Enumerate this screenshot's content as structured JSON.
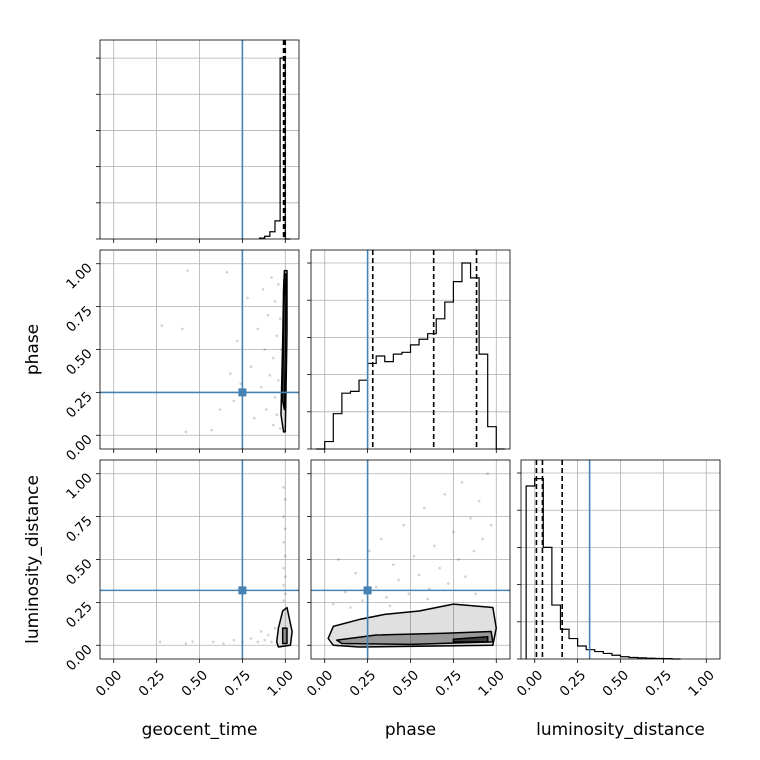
{
  "colors": {
    "truth": "#4682b4",
    "hist": "#000000",
    "quantile": "#000000",
    "grid": "#b0b0b0",
    "contour_fill": "#000000",
    "scatter": "#000000"
  },
  "chart_data": {
    "type": "corner",
    "parameters": [
      "geocent_time",
      "phase",
      "luminosity_distance"
    ],
    "axis_labels": {
      "x": [
        "geocent_time",
        "phase",
        "luminosity_distance"
      ],
      "y": [
        "",
        "phase",
        "luminosity_distance"
      ]
    },
    "range": [
      -0.08,
      1.08
    ],
    "ticks": [
      0.0,
      0.25,
      0.5,
      0.75,
      1.0
    ],
    "tick_labels": [
      "0.00",
      "0.25",
      "0.50",
      "0.75",
      "1.00"
    ],
    "grid": true,
    "truths": [
      0.75,
      0.25,
      0.32
    ],
    "quantiles": [
      [
        0.99,
        0.995,
        1.0
      ],
      [
        0.28,
        0.635,
        0.885
      ],
      [
        0.01,
        0.045,
        0.16
      ]
    ],
    "histograms": [
      {
        "parameter": "geocent_time",
        "bin_edges": [
          0.85,
          0.88,
          0.91,
          0.94,
          0.97,
          1.0,
          1.03
        ],
        "counts": [
          0.005,
          0.015,
          0.04,
          0.1,
          1.0,
          0.0
        ],
        "ymax": 1.1
      },
      {
        "parameter": "phase",
        "bin_edges": [
          -0.05,
          0.0,
          0.05,
          0.1,
          0.15,
          0.2,
          0.25,
          0.3,
          0.35,
          0.4,
          0.45,
          0.5,
          0.55,
          0.6,
          0.65,
          0.7,
          0.75,
          0.8,
          0.85,
          0.9,
          0.95,
          1.0,
          1.05
        ],
        "counts": [
          0.0,
          0.04,
          0.19,
          0.3,
          0.31,
          0.37,
          0.46,
          0.5,
          0.47,
          0.51,
          0.52,
          0.56,
          0.59,
          0.62,
          0.7,
          0.79,
          0.9,
          1.0,
          0.92,
          0.51,
          0.12,
          0.0
        ],
        "ymax": 1.07
      },
      {
        "parameter": "luminosity_distance",
        "bin_edges": [
          -0.05,
          0.0,
          0.05,
          0.1,
          0.15,
          0.2,
          0.25,
          0.3,
          0.35,
          0.4,
          0.45,
          0.5,
          0.55,
          0.6,
          0.65,
          0.7,
          0.75,
          0.8,
          0.85
        ],
        "counts": [
          0.93,
          0.97,
          0.6,
          0.29,
          0.16,
          0.11,
          0.07,
          0.05,
          0.04,
          0.03,
          0.02,
          0.012,
          0.008,
          0.006,
          0.004,
          0.003,
          0.002,
          0.0
        ],
        "ymax": 1.07
      }
    ],
    "pairs": [
      {
        "x": "geocent_time",
        "y": "phase",
        "contours": [
          [
            [
              0.975,
              0.12
            ],
            [
              0.985,
              0.55
            ],
            [
              0.99,
              0.85
            ],
            [
              0.995,
              0.96
            ],
            [
              1.01,
              0.96
            ],
            [
              1.01,
              0.6
            ],
            [
              1.0,
              0.02
            ],
            [
              0.99,
              0.02
            ]
          ],
          [
            [
              0.985,
              0.2
            ],
            [
              0.99,
              0.6
            ],
            [
              0.995,
              0.88
            ],
            [
              1.005,
              0.88
            ],
            [
              1.0,
              0.5
            ],
            [
              0.995,
              0.15
            ]
          ],
          [
            [
              0.99,
              0.82
            ],
            [
              0.995,
              0.94
            ],
            [
              1.005,
              0.94
            ],
            [
              1.0,
              0.82
            ]
          ]
        ],
        "scatter": [
          [
            0.28,
            0.64
          ],
          [
            0.4,
            0.62
          ],
          [
            0.43,
            0.96
          ],
          [
            0.42,
            0.02
          ],
          [
            0.57,
            0.03
          ],
          [
            0.62,
            0.15
          ],
          [
            0.66,
            0.95
          ],
          [
            0.68,
            0.36
          ],
          [
            0.7,
            0.2
          ],
          [
            0.72,
            0.55
          ],
          [
            0.74,
            0.3
          ],
          [
            0.78,
            0.8
          ],
          [
            0.8,
            0.4
          ],
          [
            0.82,
            0.1
          ],
          [
            0.84,
            0.62
          ],
          [
            0.86,
            0.28
          ],
          [
            0.87,
            0.85
          ],
          [
            0.88,
            0.5
          ],
          [
            0.89,
            0.15
          ],
          [
            0.9,
            0.7
          ],
          [
            0.91,
            0.35
          ],
          [
            0.92,
            0.92
          ],
          [
            0.93,
            0.06
          ],
          [
            0.93,
            0.45
          ],
          [
            0.94,
            0.22
          ],
          [
            0.94,
            0.78
          ],
          [
            0.95,
            0.58
          ],
          [
            0.95,
            0.12
          ],
          [
            0.96,
            0.88
          ],
          [
            0.96,
            0.32
          ],
          [
            0.97,
            0.68
          ],
          [
            0.97,
            0.04
          ],
          [
            0.98,
            0.5
          ]
        ]
      },
      {
        "x": "geocent_time",
        "y": "luminosity_distance",
        "contours": [
          [
            [
              0.95,
              0.02
            ],
            [
              0.96,
              0.1
            ],
            [
              0.985,
              0.2
            ],
            [
              1.01,
              0.22
            ],
            [
              1.04,
              0.08
            ],
            [
              1.03,
              0.0
            ],
            [
              0.96,
              -0.01
            ]
          ],
          [
            [
              0.985,
              0.01
            ],
            [
              0.985,
              0.1
            ],
            [
              1.01,
              0.1
            ],
            [
              1.01,
              0.01
            ]
          ]
        ],
        "scatter": [
          [
            0.27,
            0.02
          ],
          [
            0.42,
            0.01
          ],
          [
            0.46,
            0.02
          ],
          [
            0.58,
            0.02
          ],
          [
            0.64,
            0.01
          ],
          [
            0.7,
            0.03
          ],
          [
            0.75,
            0.02
          ],
          [
            0.8,
            0.04
          ],
          [
            0.84,
            0.02
          ],
          [
            0.86,
            0.08
          ],
          [
            0.88,
            0.03
          ],
          [
            0.9,
            0.06
          ],
          [
            0.92,
            0.02
          ],
          [
            0.94,
            0.1
          ],
          [
            0.99,
            0.92
          ],
          [
            1.0,
            0.85
          ],
          [
            0.99,
            0.75
          ],
          [
            1.0,
            0.68
          ],
          [
            0.99,
            0.6
          ],
          [
            1.0,
            0.52
          ],
          [
            0.99,
            0.45
          ],
          [
            1.0,
            0.4
          ],
          [
            0.99,
            0.35
          ],
          [
            1.0,
            0.3
          ],
          [
            0.99,
            0.26
          ]
        ]
      },
      {
        "x": "phase",
        "y": "luminosity_distance",
        "contours": [
          [
            [
              0.02,
              0.04
            ],
            [
              0.05,
              0.11
            ],
            [
              0.2,
              0.15
            ],
            [
              0.35,
              0.18
            ],
            [
              0.55,
              0.2
            ],
            [
              0.75,
              0.24
            ],
            [
              0.98,
              0.22
            ],
            [
              1.0,
              0.1
            ],
            [
              0.98,
              0.0
            ],
            [
              0.6,
              -0.005
            ],
            [
              0.2,
              -0.01
            ],
            [
              0.05,
              0.0
            ]
          ],
          [
            [
              0.07,
              0.03
            ],
            [
              0.3,
              0.06
            ],
            [
              0.7,
              0.07
            ],
            [
              0.97,
              0.08
            ],
            [
              0.98,
              0.02
            ],
            [
              0.5,
              0.005
            ],
            [
              0.1,
              0.01
            ]
          ],
          [
            [
              0.75,
              0.035
            ],
            [
              0.95,
              0.05
            ],
            [
              0.95,
              0.02
            ],
            [
              0.75,
              0.02
            ]
          ]
        ],
        "scatter": [
          [
            0.08,
            0.5
          ],
          [
            0.12,
            0.31
          ],
          [
            0.18,
            0.42
          ],
          [
            0.22,
            0.26
          ],
          [
            0.26,
            0.55
          ],
          [
            0.3,
            0.34
          ],
          [
            0.33,
            0.62
          ],
          [
            0.36,
            0.28
          ],
          [
            0.4,
            0.47
          ],
          [
            0.43,
            0.38
          ],
          [
            0.46,
            0.7
          ],
          [
            0.49,
            0.3
          ],
          [
            0.52,
            0.52
          ],
          [
            0.55,
            0.41
          ],
          [
            0.58,
            0.8
          ],
          [
            0.61,
            0.33
          ],
          [
            0.64,
            0.58
          ],
          [
            0.67,
            0.45
          ],
          [
            0.7,
            0.88
          ],
          [
            0.72,
            0.36
          ],
          [
            0.75,
            0.66
          ],
          [
            0.78,
            0.5
          ],
          [
            0.8,
            0.95
          ],
          [
            0.82,
            0.4
          ],
          [
            0.85,
            0.74
          ],
          [
            0.87,
            0.55
          ],
          [
            0.9,
            0.84
          ],
          [
            0.92,
            0.62
          ],
          [
            0.95,
            1.0
          ],
          [
            0.97,
            0.7
          ],
          [
            0.15,
            0.22
          ],
          [
            0.05,
            0.24
          ],
          [
            0.38,
            0.23
          ],
          [
            0.6,
            0.27
          ],
          [
            0.88,
            0.3
          ]
        ]
      }
    ]
  }
}
